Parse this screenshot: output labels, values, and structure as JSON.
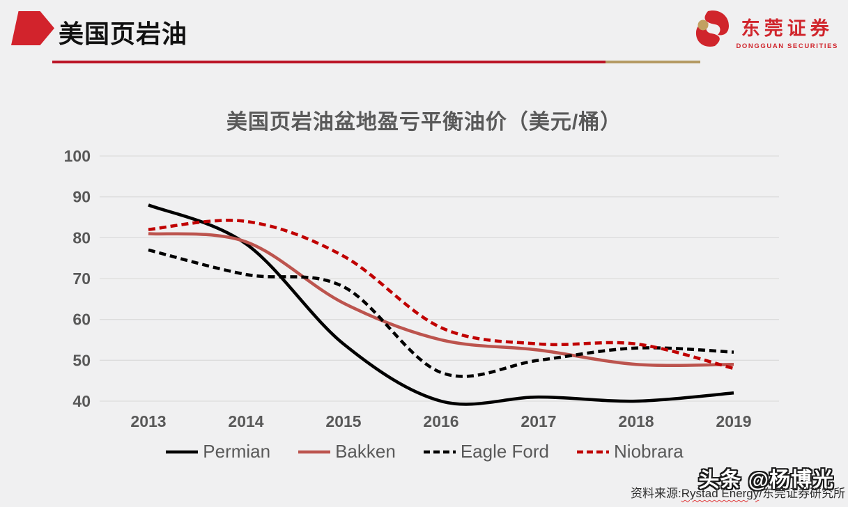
{
  "header": {
    "title": "美国页岩油",
    "logo_cn": "东莞证券",
    "logo_en": "DONGGUAN SECURITIES"
  },
  "chart_data": {
    "type": "line",
    "title": "美国页岩油盆地盈亏平衡油价（美元/桶）",
    "categories": [
      "2013",
      "2014",
      "2015",
      "2016",
      "2017",
      "2018",
      "2019"
    ],
    "series": [
      {
        "name": "Permian",
        "color": "#000000",
        "dash": false,
        "values": [
          88,
          78.5,
          54,
          40,
          41,
          40,
          42
        ]
      },
      {
        "name": "Bakken",
        "color": "#bc544e",
        "dash": false,
        "values": [
          81,
          79,
          64,
          55,
          52.5,
          49,
          49
        ]
      },
      {
        "name": "Eagle Ford",
        "color": "#000000",
        "dash": true,
        "values": [
          77,
          71,
          68,
          47,
          50,
          53,
          52
        ]
      },
      {
        "name": "Niobrara",
        "color": "#c00000",
        "dash": true,
        "values": [
          82,
          84,
          75.5,
          58,
          54,
          54,
          48
        ]
      }
    ],
    "xlabel": "",
    "ylabel": "",
    "ylim": [
      40,
      100
    ],
    "ytick_step": 10,
    "grid": true,
    "legend_position": "bottom"
  },
  "footer": {
    "watermark": "头条 @杨博光",
    "source_prefix": "资料来源:",
    "source_marked": "Rystad Energy",
    "source_suffix": "/东莞证券研究所"
  },
  "colors": {
    "background": "#f0f0f1",
    "accent_red": "#d2232c",
    "rule_red": "#bb1426",
    "rule_gold": "#b49a63",
    "axis_text": "#595959",
    "gridline": "#dcdcdc"
  }
}
